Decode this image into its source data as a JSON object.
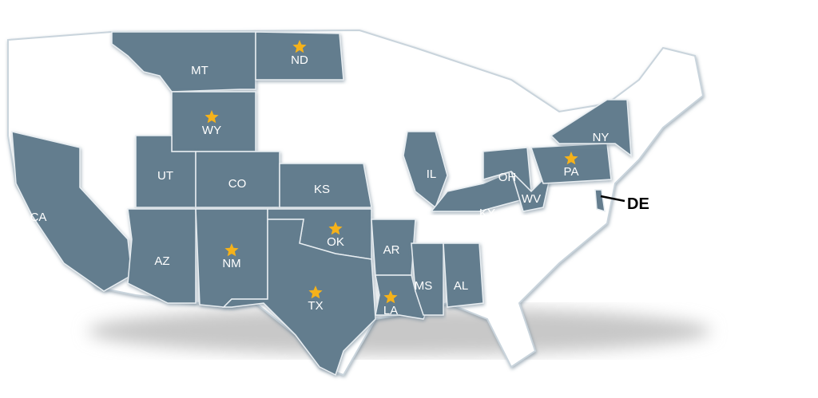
{
  "map": {
    "highlight_color": "#647d8e",
    "base_color": "#ffffff",
    "star_color": "#f5b21a",
    "states": [
      {
        "abbr": "MT",
        "star": false
      },
      {
        "abbr": "ND",
        "star": true
      },
      {
        "abbr": "WY",
        "star": true
      },
      {
        "abbr": "UT",
        "star": false
      },
      {
        "abbr": "CO",
        "star": false
      },
      {
        "abbr": "KS",
        "star": false
      },
      {
        "abbr": "CA",
        "star": false
      },
      {
        "abbr": "AZ",
        "star": false
      },
      {
        "abbr": "NM",
        "star": true
      },
      {
        "abbr": "OK",
        "star": true
      },
      {
        "abbr": "TX",
        "star": true
      },
      {
        "abbr": "AR",
        "star": false
      },
      {
        "abbr": "LA",
        "star": true
      },
      {
        "abbr": "MS",
        "star": false
      },
      {
        "abbr": "AL",
        "star": false
      },
      {
        "abbr": "IL",
        "star": false
      },
      {
        "abbr": "KY",
        "star": false
      },
      {
        "abbr": "OH",
        "star": false
      },
      {
        "abbr": "WV",
        "star": false
      },
      {
        "abbr": "PA",
        "star": true
      },
      {
        "abbr": "NY",
        "star": false
      }
    ],
    "callout": {
      "abbr": "DE"
    }
  }
}
